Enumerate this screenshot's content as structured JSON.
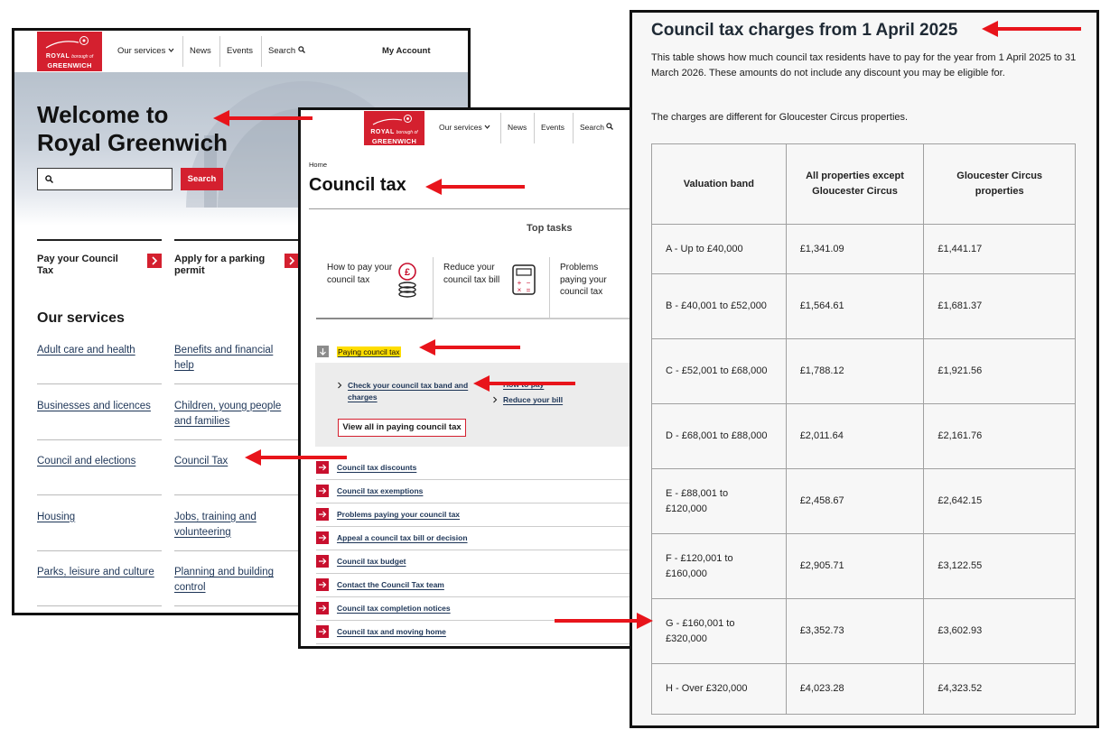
{
  "homepage": {
    "logo": {
      "line1": "ROYAL",
      "line1_small": "borough of",
      "line2": "GREENWICH"
    },
    "nav": [
      "Our services",
      "News",
      "Events",
      "Search"
    ],
    "account": "My Account",
    "hero_title": [
      "Welcome to",
      "Royal Greenwich"
    ],
    "search_button": "Search",
    "tasks": [
      "Pay your Council Tax",
      "Apply for a parking permit"
    ],
    "services_heading": "Our services",
    "services": [
      "Adult care and health",
      "Benefits and financial help",
      "Businesses and licences",
      "Children, young people and families",
      "Council and elections",
      "Council Tax",
      "Housing",
      "Jobs, training and volunteering",
      "Parks, leisure and culture",
      "Planning and building control"
    ]
  },
  "council_tax_page": {
    "logo": {
      "line1": "ROYAL",
      "line1_small": "borough of",
      "line2": "GREENWICH"
    },
    "nav": [
      "Our services",
      "News",
      "Events",
      "Search"
    ],
    "breadcrumb": "Home",
    "title": "Council tax",
    "top_tasks_heading": "Top tasks",
    "top_tasks": [
      "How to pay your council tax",
      "Reduce your council tax bill",
      "Problems paying your council tax"
    ],
    "accordion": {
      "title": "Paying council tax",
      "links": [
        "Check your council tax band and charges",
        "How to pay",
        "Reduce your bill"
      ],
      "view_all": "View all in paying council tax"
    },
    "links": [
      "Council tax discounts",
      "Council tax exemptions",
      "Problems paying your council tax",
      "Appeal a council tax bill or decision",
      "Council tax budget",
      "Contact the Council Tax team",
      "Council tax completion notices",
      "Council tax and moving home"
    ]
  },
  "charges_page": {
    "title": "Council tax charges from 1 April 2025",
    "paragraphs": [
      "This table shows how much council tax residents have to pay for the year from 1 April 2025 to 31 March 2026. These amounts do not include any discount you may be eligible for.",
      "The charges are different for Gloucester Circus properties."
    ],
    "table": {
      "headers": [
        "Valuation band",
        "All properties except Gloucester Circus",
        "Gloucester Circus properties"
      ],
      "rows": [
        [
          "A - Up to £40,000",
          "£1,341.09",
          "£1,441.17"
        ],
        [
          "B - £40,001 to £52,000",
          "£1,564.61",
          "£1,681.37"
        ],
        [
          "C - £52,001 to £68,000",
          "£1,788.12",
          "£1,921.56"
        ],
        [
          "D - £68,001 to £88,000",
          "£2,011.64",
          "£2,161.76"
        ],
        [
          "E - £88,001 to £120,000",
          "£2,458.67",
          "£2,642.15"
        ],
        [
          "F - £120,001 to £160,000",
          "£2,905.71",
          "£3,122.55"
        ],
        [
          "G - £160,001 to £320,000",
          "£3,352.73",
          "£3,602.93"
        ],
        [
          "H - Over £320,000",
          "£4,023.28",
          "£4,323.52"
        ]
      ]
    }
  }
}
